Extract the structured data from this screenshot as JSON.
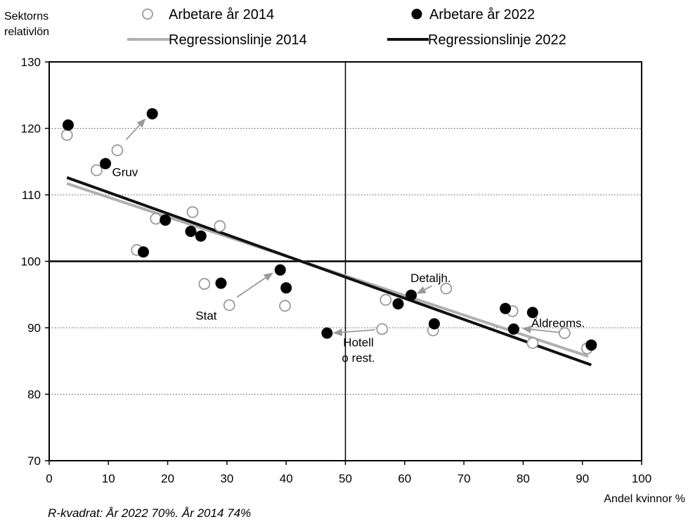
{
  "chart_data": {
    "type": "scatter",
    "ylabel_lines": [
      "Sektorns",
      "relativlön"
    ],
    "xlabel": "Andel kvinnor %",
    "xlim": [
      0,
      100
    ],
    "ylim": [
      70,
      130
    ],
    "x_ticks": [
      0,
      10,
      20,
      30,
      40,
      50,
      60,
      70,
      80,
      90,
      100
    ],
    "y_ticks": [
      70,
      80,
      90,
      100,
      110,
      120,
      130
    ],
    "grid": "horizontal dotted at 80, 90, 110, 120",
    "reference_lines": {
      "x": 50,
      "y": 100
    },
    "legend_placement": "top",
    "legend": {
      "points_2014": "Arbetare år 2014",
      "points_2022": "Arbetare år 2022",
      "line_2014": "Regressionslinje 2014",
      "line_2022": "Regressionslinje 2022"
    },
    "series": [
      {
        "name": "Arbetare år 2014",
        "marker": "open-circle",
        "points": [
          [
            3,
            119
          ],
          [
            8,
            113.7
          ],
          [
            11.5,
            116.7
          ],
          [
            14.8,
            101.7
          ],
          [
            18,
            106.4
          ],
          [
            24.2,
            107.4
          ],
          [
            26.2,
            96.6
          ],
          [
            28.8,
            105.3
          ],
          [
            30.4,
            93.4
          ],
          [
            39.8,
            93.3
          ],
          [
            56.2,
            89.8
          ],
          [
            56.8,
            94.2
          ],
          [
            64.8,
            89.6
          ],
          [
            67,
            95.9
          ],
          [
            78.2,
            92.5
          ],
          [
            81.6,
            87.7
          ],
          [
            87,
            89.2
          ],
          [
            90.8,
            86.9
          ]
        ]
      },
      {
        "name": "Arbetare år 2022",
        "marker": "filled-circle",
        "points": [
          [
            3.2,
            120.5
          ],
          [
            9.5,
            114.7
          ],
          [
            17.4,
            122.2
          ],
          [
            15.9,
            101.4
          ],
          [
            19.6,
            106.2
          ],
          [
            23.9,
            104.5
          ],
          [
            25.6,
            103.8
          ],
          [
            29,
            96.7
          ],
          [
            39,
            98.7
          ],
          [
            40,
            96
          ],
          [
            46.9,
            89.2
          ],
          [
            58.9,
            93.6
          ],
          [
            61.1,
            94.9
          ],
          [
            65,
            90.6
          ],
          [
            77,
            92.9
          ],
          [
            78.4,
            89.8
          ],
          [
            81.6,
            92.3
          ],
          [
            91.5,
            87.4
          ]
        ]
      }
    ],
    "regression_lines": [
      {
        "name": "Regressionslinje 2014",
        "color": "#b0b0b0",
        "from": [
          3,
          111.7
        ],
        "to": [
          91,
          85.7
        ]
      },
      {
        "name": "Regressionslinje 2022",
        "color": "#111111",
        "from": [
          3,
          112.6
        ],
        "to": [
          91.5,
          84.4
        ]
      }
    ],
    "annotations": [
      {
        "lines": [
          "Gruv"
        ],
        "at": [
          12.8,
          112.8
        ],
        "arrow_from": [
          13,
          118.3
        ],
        "arrow_to": [
          16.3,
          121.5
        ]
      },
      {
        "lines": [
          "Stat"
        ],
        "at": [
          26.5,
          91.2
        ],
        "arrow_from": [
          31.7,
          94.6
        ],
        "arrow_to": [
          37.8,
          98.3
        ]
      },
      {
        "lines": [
          "Detaljh."
        ],
        "at": [
          64.4,
          96.9
        ],
        "arrow_from": [
          64.6,
          96.3
        ],
        "arrow_to": [
          62,
          95.1
        ]
      },
      {
        "lines": [
          "Äldreoms."
        ],
        "at": [
          85.9,
          90.1
        ],
        "arrow_from": [
          86.1,
          89.3
        ],
        "arrow_to": [
          79.8,
          89.9
        ]
      },
      {
        "lines": [
          "Hotell",
          "o rest."
        ],
        "at": [
          52.2,
          87.2
        ],
        "arrow_from": [
          55,
          89.7
        ],
        "arrow_to": [
          47.9,
          89.2
        ]
      }
    ],
    "note": "R-kvadrat: År 2022 70%. År 2014 74%"
  }
}
